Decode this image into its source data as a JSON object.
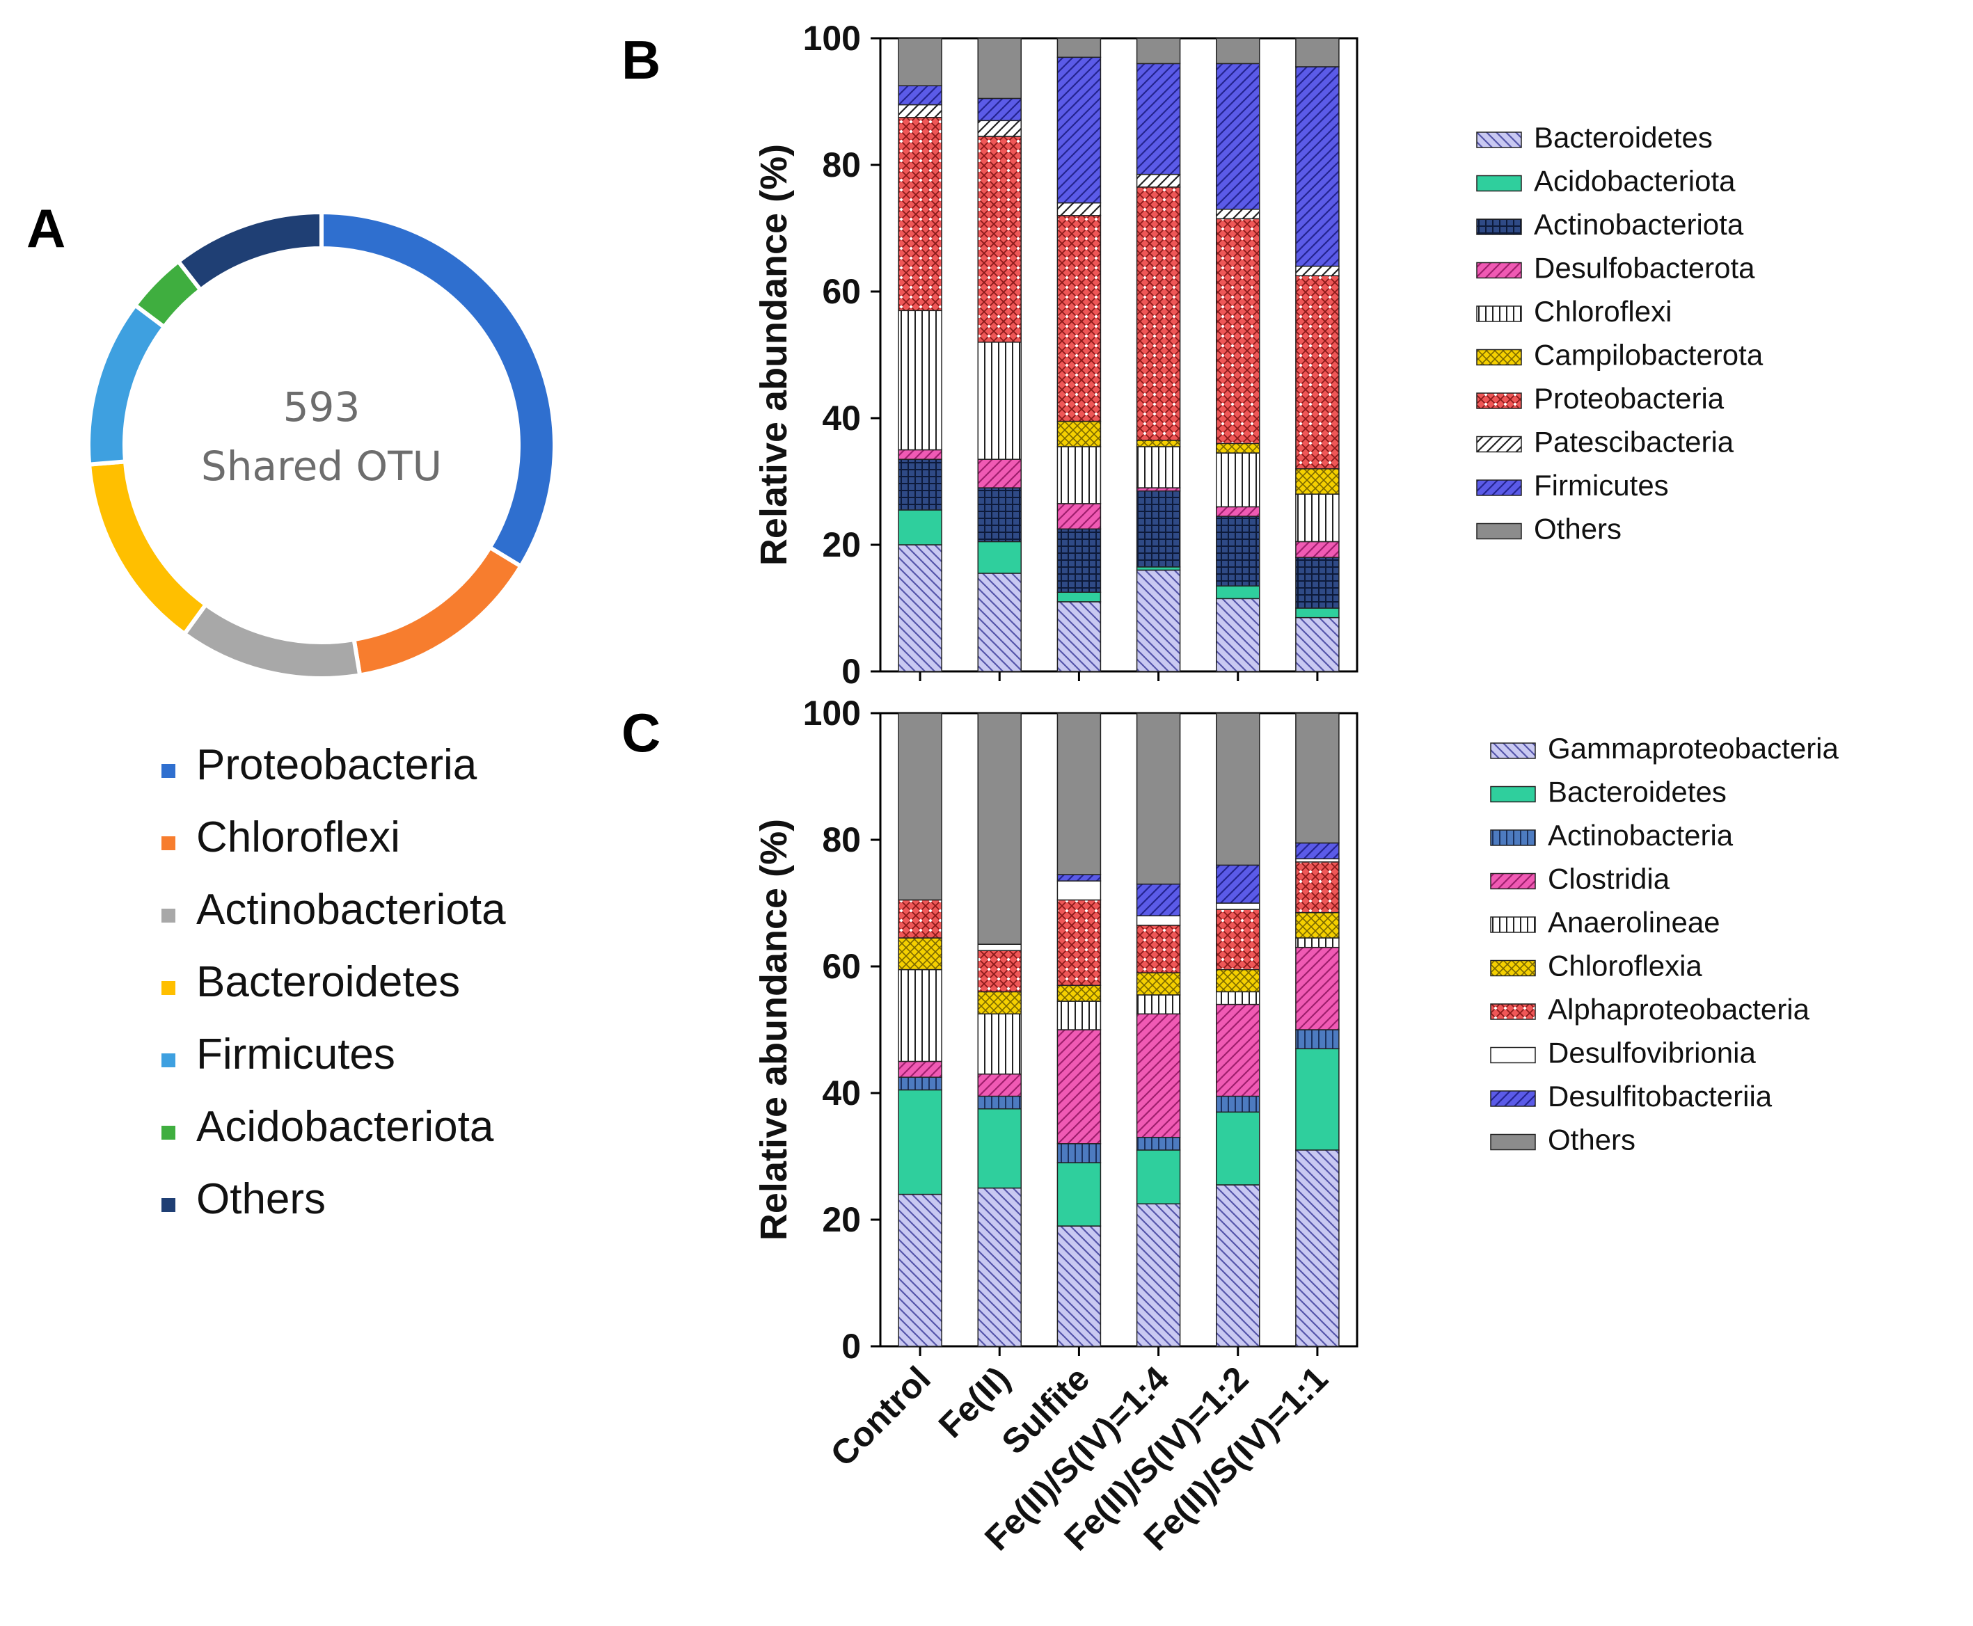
{
  "colors": {
    "Bacteroidetes": "#c9c9f2",
    "Acidobacteriota": "#2fcf9d",
    "Actinobacteriota": "#2f4a86",
    "Desulfobacterota": "#f05ab4",
    "Chloroflexi": "#ffffff",
    "Campilobacterota": "#f5d000",
    "Proteobacteria": "#ef5757",
    "Patescibacteria": "#ffffff",
    "Firmicutes": "#5b5be8",
    "Others": "#8c8c8c",
    "Gammaproteobacteria": "#c9c9f2",
    "Actinobacteria": "#4d7bc0",
    "Clostridia": "#f05ab4",
    "Anaerolineae": "#ffffff",
    "Chloroflexia": "#f5d000",
    "Alphaproteobacteria": "#ef5757",
    "Desulfovibrionia": "#ffffff",
    "Desulfitobacteriia": "#5b5be8"
  },
  "chart_data": [
    {
      "panel": "A",
      "type": "pie",
      "center_number": "593",
      "center_label": "Shared OTU",
      "categories": [
        "Proteobacteria",
        "Chloroflexi",
        "Actinobacteriota",
        "Bacteroidetes",
        "Firmicutes",
        "Acidobacteriota",
        "Others"
      ],
      "values": [
        32,
        13,
        12,
        13,
        11,
        4,
        10
      ],
      "colors": [
        "#2f6fcf",
        "#f77d2e",
        "#a8a8a8",
        "#ffbf00",
        "#3ea0e0",
        "#3fae3f",
        "#1f3f74"
      ]
    },
    {
      "panel": "B",
      "type": "bar",
      "stacked": true,
      "ylabel": "Relative abundance (%)",
      "ylim": [
        0,
        100
      ],
      "yticks": [
        "0",
        "20",
        "40",
        "60",
        "80",
        "100"
      ],
      "categories": [
        "Control",
        "Fe(II)",
        "Sulfite",
        "Fe(II)/S(IV)=1:4",
        "Fe(II)/S(IV)=1:2",
        "Fe(II)/S(IV)=1:1"
      ],
      "series": [
        {
          "name": "Bacteroidetes",
          "values": [
            20,
            15.5,
            11,
            16,
            11.5,
            8.5
          ]
        },
        {
          "name": "Acidobacteriota",
          "values": [
            5.5,
            5,
            1.5,
            0.5,
            2,
            1.5
          ]
        },
        {
          "name": "Actinobacteriota",
          "values": [
            8,
            8.5,
            10,
            12,
            11,
            8
          ]
        },
        {
          "name": "Desulfobacterota",
          "values": [
            1.5,
            4.5,
            4,
            0.5,
            1.5,
            2.5
          ]
        },
        {
          "name": "Chloroflexi",
          "values": [
            22,
            18.5,
            9,
            6.5,
            8.5,
            7.5
          ]
        },
        {
          "name": "Campilobacterota",
          "values": [
            0,
            0,
            4,
            1,
            1.5,
            4
          ]
        },
        {
          "name": "Proteobacteria",
          "values": [
            30.5,
            32.5,
            32.5,
            40,
            35.5,
            30.5
          ]
        },
        {
          "name": "Patescibacteria",
          "values": [
            2,
            2.5,
            2,
            2,
            1.5,
            1.5
          ]
        },
        {
          "name": "Firmicutes",
          "values": [
            3,
            3.5,
            23,
            17.5,
            23,
            31.5
          ]
        },
        {
          "name": "Others",
          "values": [
            7.5,
            9.5,
            3,
            4,
            4,
            4.5
          ]
        }
      ]
    },
    {
      "panel": "C",
      "type": "bar",
      "stacked": true,
      "ylabel": "Relative abundance (%)",
      "ylim": [
        0,
        100
      ],
      "yticks": [
        "0",
        "20",
        "40",
        "60",
        "80",
        "100"
      ],
      "categories": [
        "Control",
        "Fe(II)",
        "Sulfite",
        "Fe(II)/S(IV)=1:4",
        "Fe(II)/S(IV)=1:2",
        "Fe(II)/S(IV)=1:1"
      ],
      "series": [
        {
          "name": "Gammaproteobacteria",
          "values": [
            24,
            25,
            19,
            22.5,
            25.5,
            31
          ]
        },
        {
          "name": "Bacteroidetes",
          "values": [
            16.5,
            12.5,
            10,
            8.5,
            11.5,
            16
          ]
        },
        {
          "name": "Actinobacteria",
          "values": [
            2,
            2,
            3,
            2,
            2.5,
            3
          ]
        },
        {
          "name": "Clostridia",
          "values": [
            2.5,
            3.5,
            18,
            19.5,
            14.5,
            13
          ]
        },
        {
          "name": "Anaerolineae",
          "values": [
            14.5,
            9.5,
            4.5,
            3,
            2,
            1.5
          ]
        },
        {
          "name": "Chloroflexia",
          "values": [
            5,
            3.5,
            2.5,
            3.5,
            3.5,
            4
          ]
        },
        {
          "name": "Alphaproteobacteria",
          "values": [
            6,
            6.5,
            13.5,
            7.5,
            9.5,
            8
          ]
        },
        {
          "name": "Desulfovibrionia",
          "values": [
            0,
            1,
            3,
            1.5,
            1,
            0.5
          ]
        },
        {
          "name": "Desulfitobacteriia",
          "values": [
            0,
            0,
            1,
            5,
            6,
            2.5
          ]
        },
        {
          "name": "Others",
          "values": [
            29.5,
            36.5,
            25.5,
            27,
            24,
            20.5
          ]
        }
      ]
    }
  ]
}
